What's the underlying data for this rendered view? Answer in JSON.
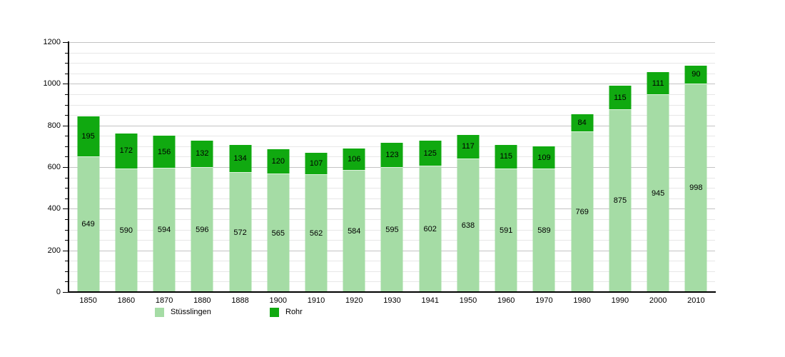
{
  "chart_data": {
    "type": "bar",
    "stacked": true,
    "title": "",
    "xlabel": "",
    "ylabel": "",
    "categories": [
      "1850",
      "1860",
      "1870",
      "1880",
      "1888",
      "1900",
      "1910",
      "1920",
      "1930",
      "1941",
      "1950",
      "1960",
      "1970",
      "1980",
      "1990",
      "2000",
      "2010"
    ],
    "series": [
      {
        "name": "Stüsslingen",
        "color": "#a5dca5",
        "values": [
          649,
          590,
          594,
          596,
          572,
          565,
          562,
          584,
          595,
          602,
          638,
          591,
          589,
          769,
          875,
          945,
          998
        ]
      },
      {
        "name": "Rohr",
        "color": "#10a910",
        "values": [
          195,
          172,
          156,
          132,
          134,
          120,
          107,
          106,
          123,
          125,
          117,
          115,
          109,
          84,
          115,
          111,
          90
        ]
      }
    ],
    "totals": [
      844,
      762,
      750,
      728,
      706,
      685,
      669,
      690,
      718,
      727,
      755,
      706,
      698,
      853,
      990,
      1056,
      1088
    ],
    "ylim": [
      0,
      1200
    ],
    "ytick_major_step": 200,
    "ytick_minor_step": 50,
    "ytick_labels": [
      "0",
      "200",
      "400",
      "600",
      "800",
      "1000",
      "1200"
    ],
    "grid": true,
    "legend_position": "bottom"
  },
  "legend": {
    "items": [
      {
        "label": "Stüsslingen",
        "color": "#a5dca5"
      },
      {
        "label": "Rohr",
        "color": "#10a910"
      }
    ]
  }
}
